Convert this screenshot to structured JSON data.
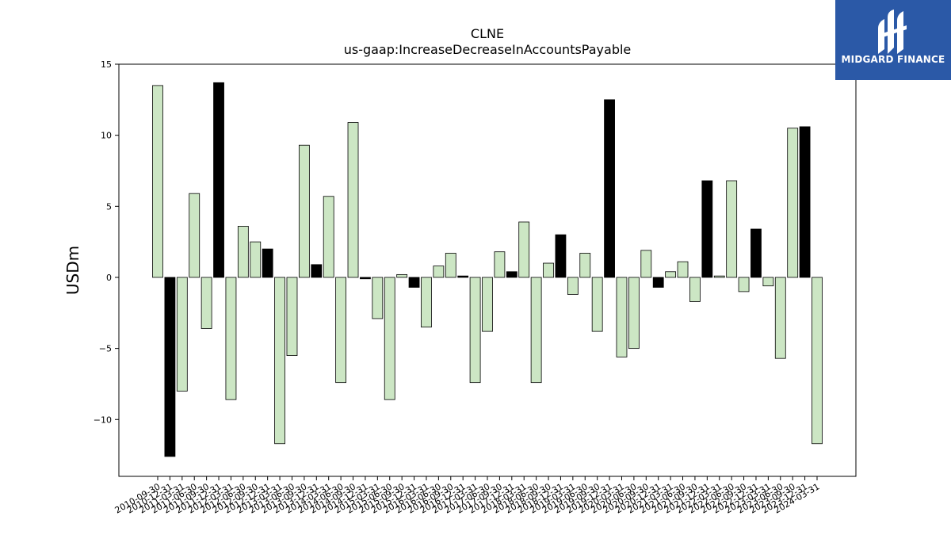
{
  "logo": {
    "text": "MIDGARD FINANCE",
    "background": "#2b59a7",
    "icon": "midgard-logo-icon"
  },
  "chart_data": {
    "type": "bar",
    "title": "CLNE",
    "subtitle": "us-gaap:IncreaseDecreaseInAccountsPayable",
    "xlabel": "",
    "ylabel": "USDm",
    "ylim": [
      -14,
      15
    ],
    "yticks": [
      -10,
      -5,
      0,
      5,
      10,
      15
    ],
    "ytick_labels": [
      "−10",
      "−5",
      "0",
      "5",
      "10",
      "15"
    ],
    "grid": false,
    "legend": "none",
    "colors": {
      "positive_fill": "#cce6c4",
      "highlight_fill": "#000000",
      "edge": "#000000"
    },
    "categories": [
      "2010-09-30",
      "2010-12-31",
      "2011-03-31",
      "2011-06-30",
      "2011-09-30",
      "2011-12-31",
      "2012-03-31",
      "2012-06-30",
      "2012-09-30",
      "2012-12-31",
      "2013-03-31",
      "2013-06-30",
      "2013-09-30",
      "2013-12-31",
      "2014-03-31",
      "2014-06-30",
      "2014-09-30",
      "2014-12-31",
      "2015-03-31",
      "2015-06-30",
      "2015-09-30",
      "2015-12-31",
      "2016-03-31",
      "2016-06-30",
      "2016-09-30",
      "2016-12-31",
      "2017-03-31",
      "2017-06-30",
      "2017-09-30",
      "2017-12-31",
      "2018-03-31",
      "2018-06-30",
      "2018-09-30",
      "2018-12-31",
      "2019-03-31",
      "2019-06-30",
      "2019-09-30",
      "2019-12-31",
      "2020-03-31",
      "2020-06-30",
      "2020-09-30",
      "2020-12-31",
      "2021-03-31",
      "2021-06-30",
      "2021-09-30",
      "2021-12-31",
      "2022-03-31",
      "2022-06-30",
      "2022-09-30",
      "2022-12-31",
      "2023-03-31",
      "2023-06-30",
      "2023-09-30",
      "2023-12-31",
      "2024-03-31"
    ],
    "values": [
      13.5,
      -12.6,
      -8.0,
      5.9,
      -3.6,
      13.7,
      -8.6,
      3.6,
      2.5,
      2.0,
      -11.7,
      -5.5,
      9.3,
      0.9,
      5.7,
      -7.4,
      10.9,
      -0.1,
      -2.9,
      -8.6,
      0.2,
      -0.7,
      -3.5,
      0.8,
      1.7,
      0.1,
      -7.4,
      -3.8,
      1.8,
      0.4,
      3.9,
      -7.4,
      1.0,
      3.0,
      -1.2,
      1.7,
      -3.8,
      12.5,
      -5.6,
      -5.0,
      1.9,
      -0.7,
      0.4,
      1.1,
      -1.7,
      6.8,
      0.1,
      6.8,
      -1.0,
      3.4,
      -0.6,
      -5.7,
      10.5,
      10.6,
      -11.7
    ],
    "highlight": [
      false,
      true,
      false,
      false,
      false,
      true,
      false,
      false,
      false,
      true,
      false,
      false,
      false,
      true,
      false,
      false,
      false,
      true,
      false,
      false,
      false,
      true,
      false,
      false,
      false,
      true,
      false,
      false,
      false,
      true,
      false,
      false,
      false,
      true,
      false,
      false,
      false,
      true,
      false,
      false,
      false,
      true,
      false,
      false,
      false,
      true,
      false,
      false,
      false,
      true,
      false,
      false,
      false,
      true,
      false
    ]
  }
}
